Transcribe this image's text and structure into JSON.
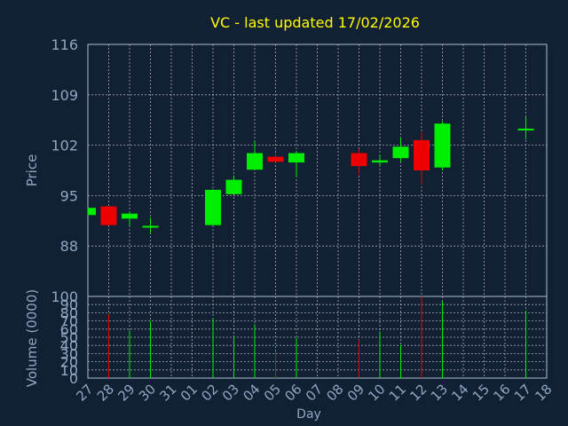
{
  "chart_data": {
    "type": "candlestick",
    "title": "VC - last updated 17/02/2026",
    "xlabel": "Day",
    "price_panel": {
      "ylabel": "Price",
      "ylim": [
        81,
        116
      ],
      "yticks": [
        88,
        95,
        102,
        109,
        116
      ]
    },
    "volume_panel": {
      "ylabel": "Volume (0000)",
      "ylim": [
        0,
        100
      ],
      "yticks": [
        0,
        10,
        20,
        30,
        40,
        50,
        60,
        70,
        80,
        90,
        100
      ]
    },
    "x_tick_labels": [
      "27",
      "28",
      "29",
      "30",
      "31",
      "01",
      "02",
      "03",
      "04",
      "05",
      "06",
      "07",
      "08",
      "09",
      "10",
      "11",
      "12",
      "13",
      "14",
      "15",
      "16",
      "17",
      "18"
    ],
    "candles": [
      {
        "day": "27",
        "open": 92.3,
        "high": 93.3,
        "low": 92.3,
        "close": 93.3,
        "volume": 0
      },
      {
        "day": "28",
        "open": 93.5,
        "high": 93.5,
        "low": 90.8,
        "close": 90.9,
        "volume": 78
      },
      {
        "day": "29",
        "open": 91.8,
        "high": 92.8,
        "low": 90.8,
        "close": 92.5,
        "volume": 58
      },
      {
        "day": "30",
        "open": 90.6,
        "high": 91.9,
        "low": 89.8,
        "close": 90.8,
        "volume": 70
      },
      {
        "day": "02",
        "open": 90.9,
        "high": 95.9,
        "low": 90.9,
        "close": 95.8,
        "volume": 73
      },
      {
        "day": "03",
        "open": 95.2,
        "high": 97.8,
        "low": 95.2,
        "close": 97.2,
        "volume": 52
      },
      {
        "day": "04",
        "open": 98.6,
        "high": 102.5,
        "low": 98.6,
        "close": 100.9,
        "volume": 66
      },
      {
        "day": "05",
        "open": 100.4,
        "high": 100.9,
        "low": 99.6,
        "close": 99.7,
        "volume": 33
      },
      {
        "day": "06",
        "open": 99.6,
        "high": 101.2,
        "low": 97.6,
        "close": 100.9,
        "volume": 49
      },
      {
        "day": "09",
        "open": 100.9,
        "high": 101.5,
        "low": 97.9,
        "close": 99.1,
        "volume": 47
      },
      {
        "day": "10",
        "open": 99.6,
        "high": 100.7,
        "low": 99.2,
        "close": 99.9,
        "volume": 57
      },
      {
        "day": "11",
        "open": 100.2,
        "high": 103.1,
        "low": 99.7,
        "close": 101.8,
        "volume": 40
      },
      {
        "day": "12",
        "open": 102.7,
        "high": 103.8,
        "low": 96.5,
        "close": 98.5,
        "volume": 100
      },
      {
        "day": "13",
        "open": 98.9,
        "high": 105.3,
        "low": 98.5,
        "close": 105.0,
        "volume": 94
      },
      {
        "day": "17",
        "open": 104.3,
        "high": 105.9,
        "low": 102.8,
        "close": 104.3,
        "volume": 82
      }
    ],
    "grid": true,
    "colors": {
      "background": "#112033",
      "title": "#ffff00",
      "text": "#8fa7c1",
      "up": "#00ee00",
      "down": "#ee0000",
      "axis": "#b0c0d0"
    }
  }
}
